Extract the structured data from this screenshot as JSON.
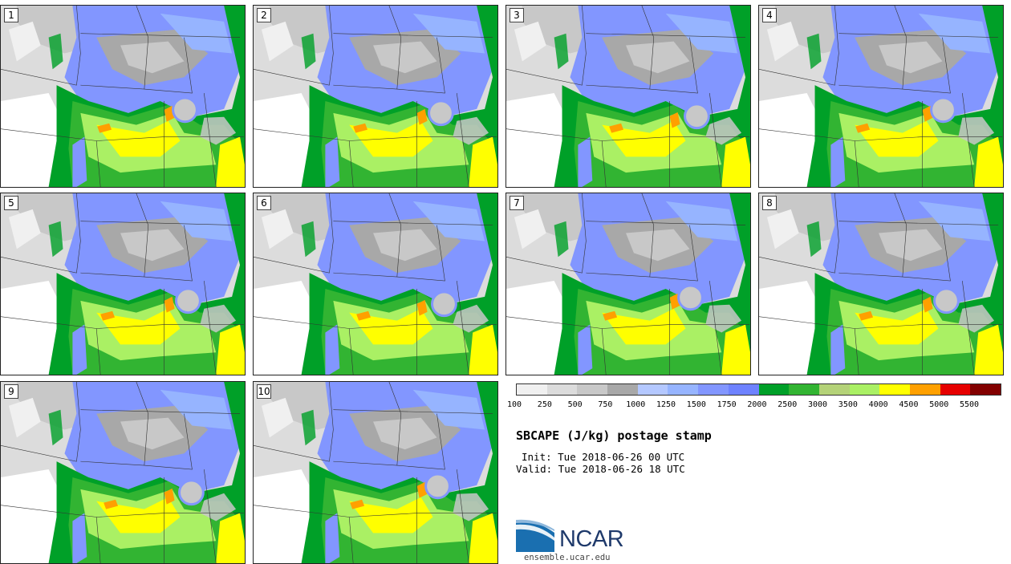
{
  "panels": [
    "1",
    "2",
    "3",
    "4",
    "5",
    "6",
    "7",
    "8",
    "9",
    "10"
  ],
  "legend": {
    "colors": [
      "#f0f0f0",
      "#dcdcdc",
      "#c8c8c8",
      "#a8a8a8",
      "#b4c8ff",
      "#96b4ff",
      "#8296ff",
      "#6e82ff",
      "#00a028",
      "#32b432",
      "#b4d278",
      "#aaf064",
      "#ffff00",
      "#ffa000",
      "#e60000",
      "#820000"
    ],
    "ticks": [
      "100",
      "250",
      "500",
      "750",
      "1000",
      "1250",
      "1500",
      "1750",
      "2000",
      "2500",
      "3000",
      "3500",
      "4000",
      "4500",
      "5000",
      "5500"
    ]
  },
  "title": "SBCAPE (J/kg) postage stamp",
  "init": "Init: Tue 2018-06-26 00 UTC",
  "valid": "Valid: Tue 2018-06-26 18 UTC",
  "logo": {
    "text": "NCAR",
    "site": "ensemble.ucar.edu"
  }
}
